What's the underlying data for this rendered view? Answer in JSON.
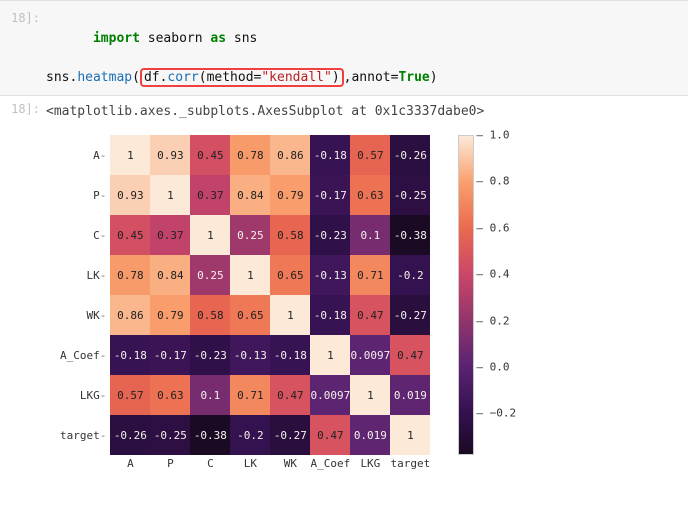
{
  "input_cell": {
    "prompt": "18]:",
    "line1": {
      "import": "import",
      "mod": "seaborn",
      "as": "as",
      "alias": "sns"
    },
    "line2": {
      "obj": "sns",
      "dot1": ".",
      "fn": "heatmap",
      "lparen": "(",
      "boxed_df": "df",
      "boxed_dot": ".",
      "boxed_fn": "corr",
      "boxed_lparen": "(",
      "boxed_kw": "method",
      "boxed_eq": "=",
      "boxed_str": "\"kendall\"",
      "boxed_rparen": ")",
      "comma": ",",
      "annot_kw": "annot",
      "annot_eq": "=",
      "annot_val": "True",
      "rparen": ")"
    }
  },
  "output_cell": {
    "prompt": "18]:",
    "text": "<matplotlib.axes._subplots.AxesSubplot at 0x1c3337dabe0>"
  },
  "heatmap": {
    "labels": [
      "A",
      "P",
      "C",
      "LK",
      "WK",
      "A_Coef",
      "LKG",
      "target"
    ],
    "cell_size": 40,
    "data": [
      [
        1,
        0.93,
        0.45,
        0.78,
        0.86,
        -0.18,
        0.57,
        -0.26
      ],
      [
        0.93,
        1,
        0.37,
        0.84,
        0.79,
        -0.17,
        0.63,
        -0.25
      ],
      [
        0.45,
        0.37,
        1,
        0.25,
        0.58,
        -0.23,
        0.1,
        -0.38
      ],
      [
        0.78,
        0.84,
        0.25,
        1,
        0.65,
        -0.13,
        0.71,
        -0.2
      ],
      [
        0.86,
        0.79,
        0.58,
        0.65,
        1,
        -0.18,
        0.47,
        -0.27
      ],
      [
        -0.18,
        -0.17,
        -0.23,
        -0.13,
        -0.18,
        1,
        0.0097,
        0.47
      ],
      [
        0.57,
        0.63,
        0.1,
        0.71,
        0.47,
        0.0097,
        1,
        0.019
      ],
      [
        -0.26,
        -0.25,
        -0.38,
        -0.2,
        -0.27,
        0.47,
        0.019,
        1
      ]
    ],
    "color_stops": [
      {
        "v": -0.38,
        "c": "#1a0a23"
      },
      {
        "v": -0.2,
        "c": "#34114f"
      },
      {
        "v": 0.0,
        "c": "#5a2372"
      },
      {
        "v": 0.2,
        "c": "#91356c"
      },
      {
        "v": 0.4,
        "c": "#cb4668"
      },
      {
        "v": 0.6,
        "c": "#eb6a4e"
      },
      {
        "v": 0.8,
        "c": "#f9a06d"
      },
      {
        "v": 1.0,
        "c": "#fce9d8"
      }
    ],
    "light_text_threshold": 0.35,
    "colorbar_ticks": [
      {
        "v": 1.0,
        "label": " 1.0"
      },
      {
        "v": 0.8,
        "label": " 0.8"
      },
      {
        "v": 0.6,
        "label": " 0.6"
      },
      {
        "v": 0.4,
        "label": " 0.4"
      },
      {
        "v": 0.2,
        "label": " 0.2"
      },
      {
        "v": 0.0,
        "label": " 0.0"
      },
      {
        "v": -0.2,
        "label": " −0.2"
      }
    ],
    "data_min": -0.38,
    "data_max": 1.0
  }
}
